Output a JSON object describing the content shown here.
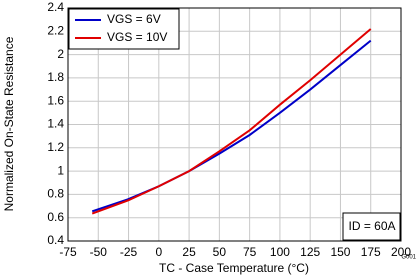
{
  "chart_data": {
    "type": "line",
    "y_label": "Normalized On-State Resistance",
    "x_label": "TC - Case Temperature (°C)",
    "annotation": "ID = 60A",
    "figure_id": "G001",
    "x": [
      -55,
      -25,
      0,
      25,
      50,
      75,
      100,
      125,
      150,
      175
    ],
    "series": [
      {
        "name": "VGS = 6V",
        "color": "#0000c8",
        "values": [
          0.655,
          0.76,
          0.87,
          1.0,
          1.15,
          1.31,
          1.5,
          1.7,
          1.91,
          2.12
        ]
      },
      {
        "name": "VGS = 10V",
        "color": "#e00000",
        "values": [
          0.635,
          0.75,
          0.87,
          1.0,
          1.17,
          1.35,
          1.57,
          1.78,
          2.0,
          2.22
        ]
      }
    ],
    "xlim": [
      -75,
      200
    ],
    "xticks": [
      -75,
      -50,
      -25,
      0,
      25,
      50,
      75,
      100,
      125,
      150,
      175,
      200
    ],
    "ylim": [
      0.4,
      2.4
    ],
    "yticks": [
      0.4,
      0.6,
      0.8,
      1,
      1.2,
      1.4,
      1.6,
      1.8,
      2,
      2.2,
      2.4
    ],
    "grid": true,
    "legend": "top-left"
  }
}
